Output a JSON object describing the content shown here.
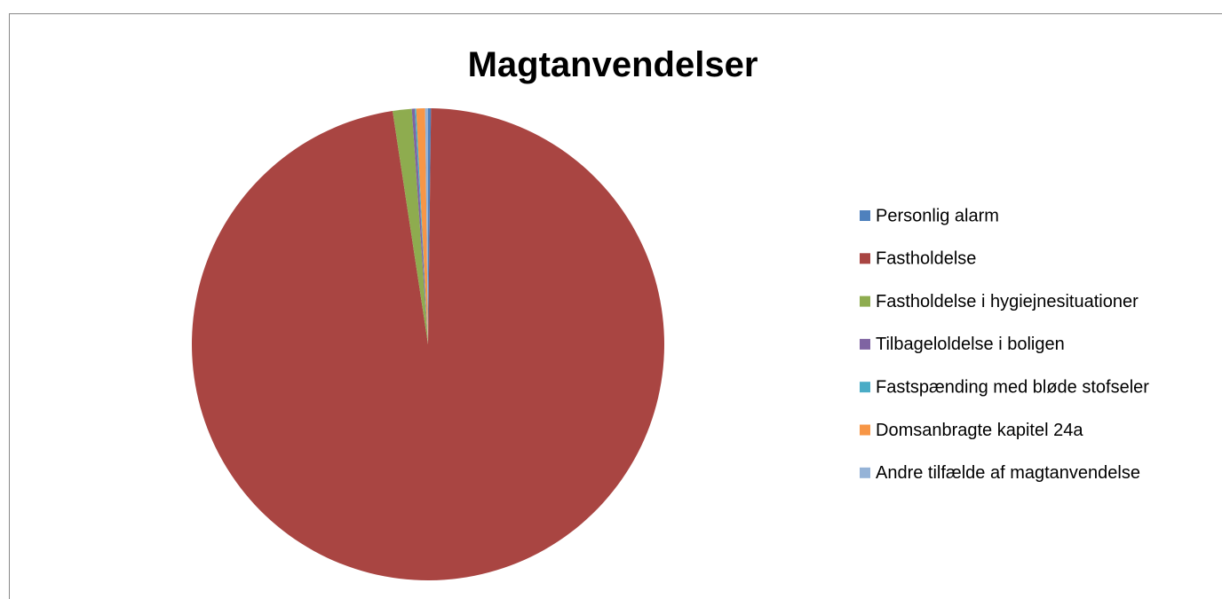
{
  "chart_data": {
    "type": "pie",
    "title": "Magtanvendelser",
    "categories": [
      "Personlig alarm",
      "Fastholdelse",
      "Fastholdelse i hygiejnesituationer",
      "Tilbageloldelse i boligen",
      "Fastspænding med bløde stofseler",
      "Domsanbragte kapitel 24a",
      "Andre tilfælde af magtanvendelse"
    ],
    "values": [
      0.2,
      97.4,
      1.3,
      0.2,
      0.1,
      0.6,
      0.2
    ],
    "colors": [
      "#4f81bd",
      "#a94542",
      "#8eac4f",
      "#7f64a2",
      "#4aacc6",
      "#f79646",
      "#95b3d7"
    ],
    "legend": "right"
  }
}
